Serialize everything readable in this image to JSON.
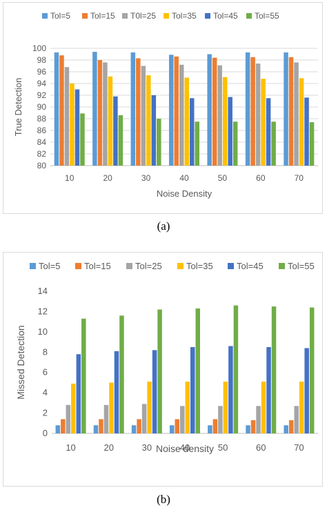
{
  "captions": [
    "(a)",
    "(b)"
  ],
  "colors": [
    "#5b9bd5",
    "#ed7d31",
    "#a5a5a5",
    "#ffc000",
    "#4472c4",
    "#70ad47"
  ],
  "chart_data": [
    {
      "type": "bar",
      "categories": [
        "10",
        "20",
        "30",
        "40",
        "50",
        "60",
        "70"
      ],
      "xlabel": "Noise Density",
      "ylabel": "True Detection",
      "ylim": [
        80,
        100
      ],
      "yticks": [
        80,
        82,
        84,
        86,
        88,
        90,
        92,
        94,
        96,
        98,
        100
      ],
      "grid": true,
      "legend": "top",
      "series": [
        {
          "name": "Tol=5",
          "values": [
            99.3,
            99.4,
            99.3,
            98.9,
            99.0,
            99.3,
            99.3
          ]
        },
        {
          "name": "Tol=15",
          "values": [
            98.8,
            98.0,
            98.3,
            98.6,
            98.4,
            98.5,
            98.5
          ]
        },
        {
          "name": "T0l=25",
          "values": [
            96.8,
            97.6,
            97.0,
            97.2,
            97.1,
            97.4,
            97.6
          ]
        },
        {
          "name": "Tol=35",
          "values": [
            94.0,
            95.2,
            95.4,
            95.0,
            95.1,
            94.8,
            94.9
          ]
        },
        {
          "name": "Tol=45",
          "values": [
            93.0,
            91.8,
            92.0,
            91.5,
            91.7,
            91.5,
            91.6
          ]
        },
        {
          "name": "Tol=55",
          "values": [
            88.9,
            88.6,
            88.0,
            87.5,
            87.5,
            87.5,
            87.4
          ]
        }
      ]
    },
    {
      "type": "bar",
      "categories": [
        "10",
        "20",
        "30",
        "40",
        "50",
        "60",
        "70"
      ],
      "xlabel": "Noise density",
      "ylabel": "Missed Detection",
      "ylim": [
        0,
        14
      ],
      "yticks": [
        0,
        2,
        4,
        6,
        8,
        10,
        12,
        14
      ],
      "grid": false,
      "legend": "top",
      "series": [
        {
          "name": "Tol=5",
          "values": [
            0.8,
            0.8,
            0.8,
            0.8,
            0.8,
            0.8,
            0.8
          ]
        },
        {
          "name": "Tol=15",
          "values": [
            1.4,
            1.4,
            1.4,
            1.4,
            1.4,
            1.3,
            1.3
          ]
        },
        {
          "name": "Tol=25",
          "values": [
            2.8,
            2.8,
            2.9,
            2.7,
            2.7,
            2.7,
            2.7
          ]
        },
        {
          "name": "Tol=35",
          "values": [
            4.9,
            5.0,
            5.1,
            5.1,
            5.1,
            5.1,
            5.1
          ]
        },
        {
          "name": "Tol=45",
          "values": [
            7.8,
            8.1,
            8.2,
            8.5,
            8.6,
            8.5,
            8.4
          ]
        },
        {
          "name": "Tol=55",
          "values": [
            11.3,
            11.6,
            12.2,
            12.3,
            12.6,
            12.5,
            12.4
          ]
        }
      ]
    }
  ]
}
